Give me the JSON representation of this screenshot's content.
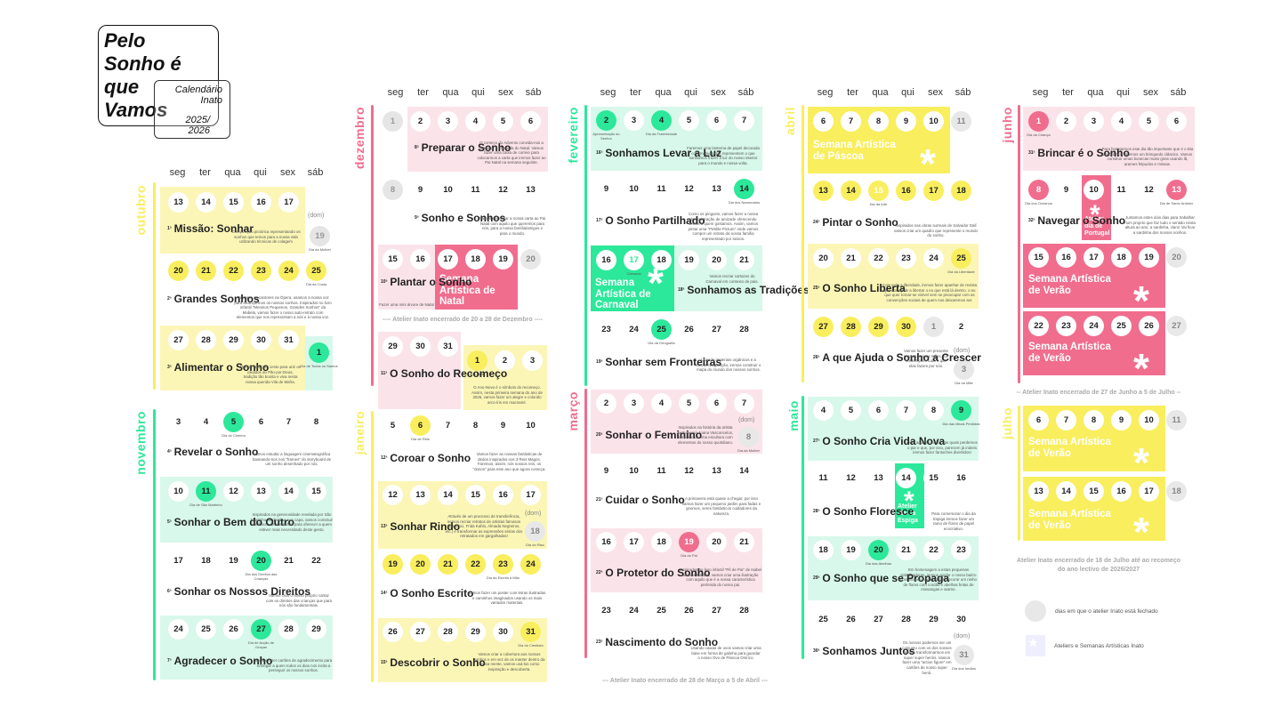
{
  "logo": {
    "l1": "Pelo",
    "l2": "Sonho é",
    "l3": "que",
    "l4": "Vamos",
    "s1": "Calendário",
    "s2": "Inato",
    "y1": "2025/",
    "y2": "2026"
  },
  "days": [
    "seg",
    "ter",
    "qua",
    "qui",
    "sex",
    "sáb"
  ],
  "months": {
    "out": "outubro",
    "nov": "novembro",
    "dez": "dezembro",
    "jan": "janeiro",
    "fev": "fevereiro",
    "mar": "março",
    "abr": "abril",
    "mai": "maio",
    "jun": "junho",
    "jul": "julho"
  },
  "dom": "(dom)",
  "weeks": {
    "w1": "Missão: Sonhar",
    "w2": "Grandes Sonhos",
    "w3": "Alimentar o Sonho",
    "w4": "Revelar o Sonho",
    "w5": "Sonhar o Bem do Outro",
    "w6": "Sonhar os Nossos Direitos",
    "w7": "Agradecer o Sonho",
    "w8": "Preparar o Sonho",
    "w9": "Sonho e Sonhos",
    "w10": "Plantar o Sonho",
    "w11": "O Sonho do Recomeço",
    "w12": "Coroar o Sonho",
    "w13": "Sonhar Rindo",
    "w14": "O Sonho Escrito",
    "w15": "Descobrir o Sonho",
    "w16": "Sonhamos Levar a Luz",
    "w17": "O Sonho Partilhado",
    "w18": "Sonhamos as Tradições",
    "w19": "Sonhar sem Fronteiras",
    "w20": "Sonhar o Feminino",
    "w21": "Cuidar o Sonho",
    "w22": "O Protetor do Sonho",
    "w23": "Nascimento do Sonho",
    "w24": "Pintar o Sonho",
    "w25": "O Sonho Liberta",
    "w26": "A que Ajuda o Sonho a Crescer",
    "w27": "O Sonho Cria Vida Nova",
    "w28": "O Sonho Floresce",
    "w29": "O Sonho que se Propaga",
    "w30": "Sonhamos Juntos",
    "w31": "Brincar é o Sonho",
    "w32": "Navegar o Sonho"
  },
  "nums": {
    "n1": "1ª",
    "n2": "2ª",
    "n3": "3ª",
    "n4": "4ª",
    "n5": "5ª",
    "n6": "6ª",
    "n7": "7ª",
    "n8": "8ª",
    "n9": "9ª",
    "n10": "10ª",
    "n11": "11ª",
    "n12": "12ª",
    "n13": "13ª",
    "n14": "14ª",
    "n15": "15ª",
    "n16": "16ª",
    "n17": "17ª",
    "n18": "18ª",
    "n19": "19ª",
    "n20": "20ª",
    "n21": "21ª",
    "n22": "22ª",
    "n23": "23ª",
    "n24": "24ª",
    "n25": "25ª",
    "n26": "26ª",
    "n27": "27ª",
    "n28": "28ª",
    "n29": "29ª",
    "n30": "30ª",
    "n31": "31ª",
    "n32": "32ª"
  },
  "hl": {
    "natal": "Semana Artística de Natal",
    "carnaval": "Semana Artística de Carnaval",
    "pascoa": "Semana Artística de Páscoa",
    "verao": "Semana Artística de Verão",
    "portugal": "Atelier dia de Portugal",
    "espiga": "Atelier dia da Espiga"
  },
  "closed": {
    "c1": "Atelier  Inato encerrado de 20 a 28 de Dezembro",
    "c2": "Atelier  Inato encerrado de 28 de Março a 5 de Abril",
    "c3": "Atelier  Inato encerrado de 27 de Junho a 5 de Julho",
    "c4a": "Atelier  Inato encerrado de 18 de Julho até ao recomeço",
    "c4b": "do ano lectivo de 2026/2027"
  },
  "legend": {
    "a": "dias em que o atelier Inato está fechado",
    "b": "Ateliers e Semanas Artísticas Inato"
  },
  "colors": {
    "yellow": "#f9ee5e",
    "green": "#2ce89a",
    "pink": "#f06d8e",
    "paleYellow": "#fbf6b6",
    "paleGreen": "#d7f8eb",
    "palePink": "#fbe3ea"
  }
}
